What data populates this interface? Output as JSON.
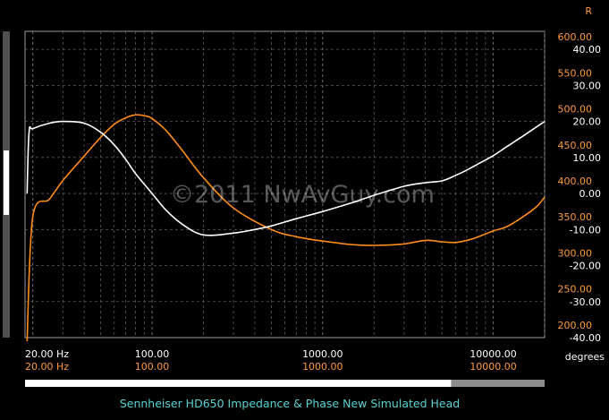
{
  "chart_data": {
    "type": "line",
    "title": "Sennheiser HD650 Impedance & Phase New Simulated Head",
    "watermark": "©2011 NwAvGuy.com",
    "x_axis": {
      "scale": "log",
      "range": [
        18,
        20000
      ],
      "ticks": [
        20,
        100,
        1000,
        10000
      ],
      "tick_labels_primary": [
        "20.00 Hz",
        "100.00",
        "1000.00",
        "10000.00"
      ],
      "tick_labels_secondary": [
        "20.00 Hz",
        "100.00",
        "1000.00",
        "10000.00"
      ]
    },
    "y_left": {
      "unit_label": "degrees",
      "range": [
        -40,
        45
      ],
      "ticks": [
        -40,
        -30,
        -20,
        -10,
        0,
        10,
        20,
        30,
        40
      ],
      "tick_labels": [
        "-40.00",
        "-30.00",
        "-20.00",
        "-10.00",
        "0.00",
        "10.00",
        "20.00",
        "30.00",
        "40.00"
      ]
    },
    "y_right": {
      "unit_label": "R",
      "range": [
        190,
        615
      ],
      "ticks": [
        200,
        250,
        300,
        350,
        400,
        450,
        500,
        550,
        600
      ],
      "tick_labels": [
        "200.00",
        "250.00",
        "300.00",
        "350.00",
        "400.00",
        "450.00",
        "500.00",
        "550.00",
        "600.00"
      ]
    },
    "grid": true,
    "series": [
      {
        "axis": "right",
        "color": "#ff8c1a",
        "x": [
          18.5,
          20,
          25,
          30,
          40,
          50,
          60,
          70,
          80,
          90,
          100,
          120,
          150,
          200,
          300,
          500,
          700,
          1000,
          1500,
          2000,
          3000,
          4000,
          5000,
          6000,
          7000,
          8000,
          10000,
          12000,
          15000,
          18000,
          20000
        ],
        "y": [
          185,
          358,
          382,
          408,
          442,
          468,
          486,
          495,
          499,
          498,
          494,
          478,
          450,
          412,
          370,
          340,
          330,
          324,
          319,
          318,
          320,
          325,
          323,
          322,
          325,
          329,
          338,
          344,
          358,
          372,
          385
        ]
      },
      {
        "axis": "left",
        "color": "#ffffff",
        "x": [
          18.5,
          19,
          20,
          25,
          30,
          40,
          50,
          60,
          70,
          80,
          100,
          120,
          150,
          200,
          300,
          400,
          500,
          700,
          1000,
          1500,
          2000,
          3000,
          4000,
          5000,
          6000,
          7000,
          8000,
          10000,
          12000,
          15000,
          20000
        ],
        "y": [
          0,
          17,
          18,
          19.5,
          20,
          19.5,
          17,
          13.5,
          9.5,
          5.5,
          0,
          -4.5,
          -8.5,
          -11.5,
          -11,
          -10,
          -9,
          -7,
          -5,
          -2.5,
          -0.5,
          2,
          3,
          3.5,
          5,
          6.5,
          8,
          10.5,
          13,
          16,
          20
        ]
      }
    ],
    "scrollbar_fill": 0.82
  }
}
